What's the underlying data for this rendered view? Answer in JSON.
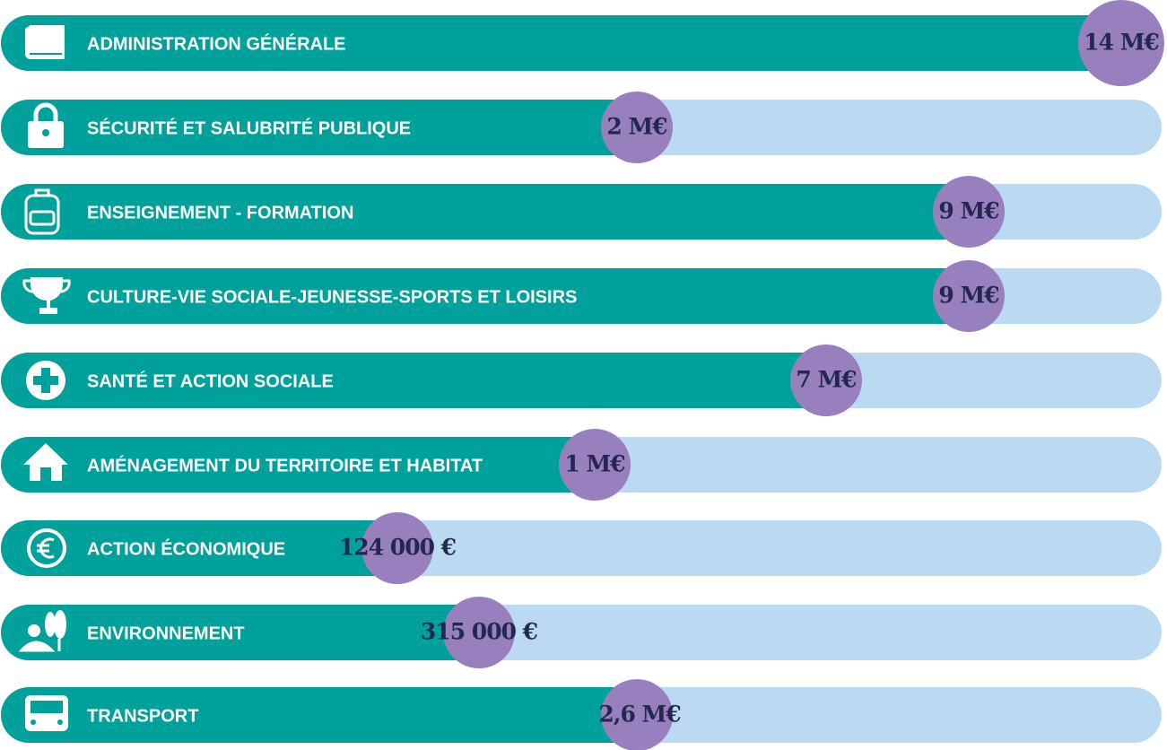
{
  "items": [
    {
      "label": "ADMINISTRATION GÉNÉRALE",
      "amount": "14 M€"
    },
    {
      "label": "SÉCURITÉ ET SALUBRITÉ PUBLIQUE",
      "amount": "2 M€"
    },
    {
      "label": "ENSEIGNEMENT - FORMATION",
      "amount": "9 M€"
    },
    {
      "label": "CULTURE-VIE SOCIALE-JEUNESSE-SPORTS ET LOISIRS",
      "amount": "9 M€"
    },
    {
      "label": "SANTÉ ET ACTION SOCIALE",
      "amount": "7 M€"
    },
    {
      "label": "AMÉNAGEMENT DU TERRITOIRE ET HABITAT",
      "amount": "1 M€"
    },
    {
      "label": "ACTION ÉCONOMIQUE",
      "amount": "124 000 €"
    },
    {
      "label": "ENVIRONNEMENT",
      "amount": "315 000 €"
    },
    {
      "label": "TRANSPORT",
      "amount": "2,6 M€"
    }
  ]
}
